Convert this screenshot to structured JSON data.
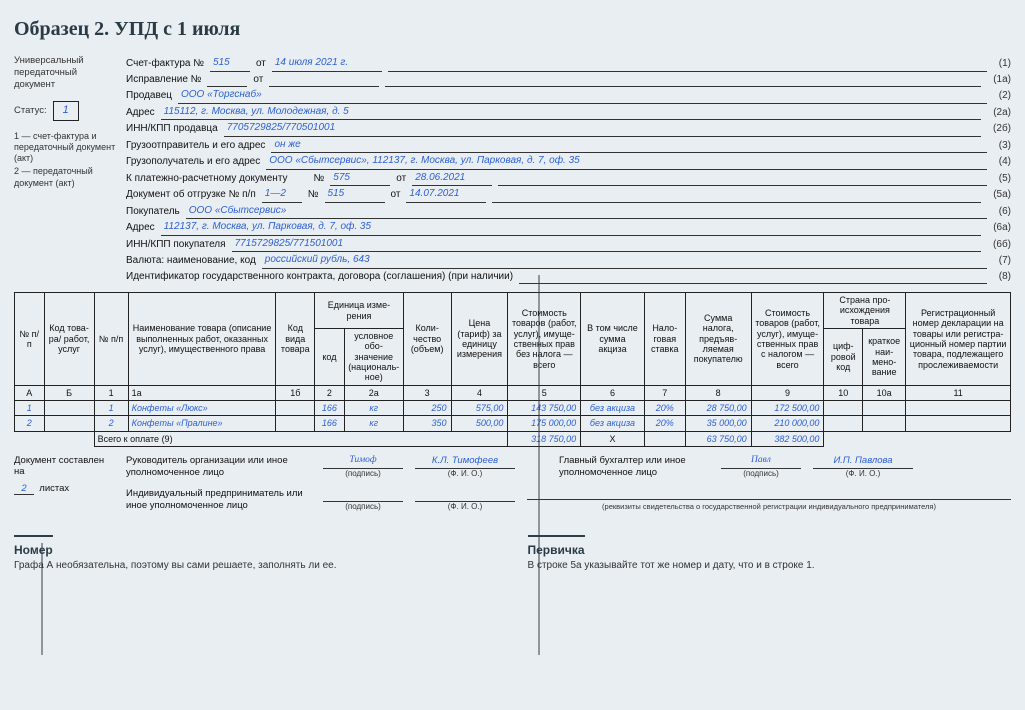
{
  "page_title": "Образец 2. УПД с 1 июля",
  "left": {
    "doc_name": "Универсальный передаточный документ",
    "status_label": "Статус:",
    "status_value": "1",
    "legend1": "1 — счет-фактура и передаточный документ (акт)",
    "legend2": "2 — передаточный документ (акт)"
  },
  "info": {
    "sf_label": "Счет-фактура №",
    "sf_no": "515",
    "sf_date_lbl": "от",
    "sf_date": "14 июля 2021 г.",
    "sf_num": "(1)",
    "corr_label": "Исправление №",
    "corr_no": "",
    "corr_date_lbl": "от",
    "corr_date": "",
    "corr_num": "(1а)",
    "seller_label": "Продавец",
    "seller": "ООО «Торгснаб»",
    "seller_num": "(2)",
    "addr_label": "Адрес",
    "addr": "115112, г. Москва, ул. Молодежная, д. 5",
    "addr_num": "(2а)",
    "inn_label": "ИНН/КПП продавца",
    "inn": "7705729825/770501001",
    "inn_num": "(2б)",
    "shipper_label": "Грузоотправитель и его адрес",
    "shipper": "он же",
    "shipper_num": "(3)",
    "consignee_label": "Грузополучатель и его адрес",
    "consignee": "ООО «Сбытсервис», 112137, г. Москва, ул. Парковая, д. 7, оф. 35",
    "consignee_num": "(4)",
    "paydoc_label": "К платежно-расчетному документу",
    "paydoc_no_lbl": "№",
    "paydoc_no": "575",
    "paydoc_date_lbl": "от",
    "paydoc_date": "28.06.2021",
    "paydoc_num": "(5)",
    "shipdoc_label": "Документ об отгрузке № п/п",
    "shipdoc_range": "1—2",
    "shipdoc_no_lbl": "№",
    "shipdoc_no": "515",
    "shipdoc_date_lbl": "от",
    "shipdoc_date": "14.07.2021",
    "shipdoc_num": "(5а)",
    "buyer_label": "Покупатель",
    "buyer": "ООО «Сбытсервис»",
    "buyer_num": "(6)",
    "buyer_addr_label": "Адрес",
    "buyer_addr": "112137, г. Москва, ул. Парковая, д. 7, оф. 35",
    "buyer_addr_num": "(6а)",
    "buyer_inn_label": "ИНН/КПП покупателя",
    "buyer_inn": "7715729825/771501001",
    "buyer_inn_num": "(6б)",
    "currency_label": "Валюта: наименование, код",
    "currency": "российский рубль, 643",
    "currency_num": "(7)",
    "contract_label": "Идентификатор государственного контракта, договора (соглашения) (при наличии)",
    "contract_num": "(8)"
  },
  "table": {
    "cols": {
      "a": "№ п/п",
      "b": "Код това­ра/ работ, услуг",
      "c1": "№ п/п",
      "c1a": "Наименование това­ра (описание выпол­ненных работ, ока­занных услуг), имущественного права",
      "c1b": "Код вида това­ра",
      "c2": "Единица изме­рения",
      "c2_code": "код",
      "c2_name": "условное обо­значение (наци­ональ­ное)",
      "c3": "Коли­чество (объ­ем)",
      "c4": "Цена (тариф) за едини­цу изме­рения",
      "c5": "Стоимость товаров (работ, услуг), имуще­ствен­ных прав без нало­га — всего",
      "c6": "В том чис­ле сумма акциза",
      "c7": "Нало­говая став­ка",
      "c8": "Сумма налога, предъяв­ляемая покупа­телю",
      "c9": "Стоимость товаров (работ, услуг), имуще­ствен­ных прав с налогом — всего",
      "c10h": "Страна про­исхождения товара",
      "c10": "циф­ровой код",
      "c10a": "крат­кое наи­мено­вание",
      "c11": "Регистраци­онный номер декларации на товары или регистра­ционный номер партии товара, подлежащего прослеживае­мости"
    },
    "ids": [
      "А",
      "Б",
      "1",
      "1а",
      "1б",
      "2",
      "2а",
      "3",
      "4",
      "5",
      "6",
      "7",
      "8",
      "9",
      "10",
      "10а",
      "11"
    ],
    "rows": [
      {
        "a": "1",
        "b": "",
        "n": "1",
        "name": "Конфеты «Люкс»",
        "vid": "",
        "code": "166",
        "unit": "кг",
        "qty": "250",
        "price": "575,00",
        "sum5": "143 750,00",
        "akc": "без акциза",
        "rate": "20%",
        "tax": "28 750,00",
        "sum9": "172 500,00",
        "c10": "",
        "c10a": "",
        "c11": ""
      },
      {
        "a": "2",
        "b": "",
        "n": "2",
        "name": "Конфеты «Пралине»",
        "vid": "",
        "code": "166",
        "unit": "кг",
        "qty": "350",
        "price": "500,00",
        "sum5": "175 000,00",
        "akc": "без акциза",
        "rate": "20%",
        "tax": "35 000,00",
        "sum9": "210 000,00",
        "c10": "",
        "c10a": "",
        "c11": ""
      }
    ],
    "total_label": "Всего к оплате (9)",
    "totals": {
      "sum5": "318 750,00",
      "c6": "Х",
      "tax": "63 750,00",
      "sum9": "382 500,00"
    }
  },
  "sigs": {
    "left_label": "Документ составлен на",
    "left_sheets": "2",
    "left_sheets_lbl": "листах",
    "head_label": "Руководитель организации или иное уполномоченное лицо",
    "head_sign": "Тимоф",
    "head_fio": "К.Л. Тимофеев",
    "acc_label": "Главный бухгалтер или иное уполномоченное лицо",
    "acc_sign": "Павл",
    "acc_fio": "И.П. Павлова",
    "ip_label": "Индивидуальный предприниматель или иное уполномоченное лицо",
    "sub_sign": "(подпись)",
    "sub_fio": "(Ф. И. О.)",
    "ip_note": "(реквизиты свидетельства о государственной регистрации индивидуального предпринимателя)"
  },
  "callouts": {
    "c1_title": "Номер",
    "c1_text": "Графа А необязательна, поэтому вы сами решаете, заполнять ли ее.",
    "c2_title": "Первичка",
    "c2_text": "В строке 5а указывайте тот же номер и дату, что и в строке 1."
  },
  "colors": {
    "accent": "#2b5fd6",
    "text": "#111",
    "bg": "#e9eef2",
    "rule": "#333"
  }
}
